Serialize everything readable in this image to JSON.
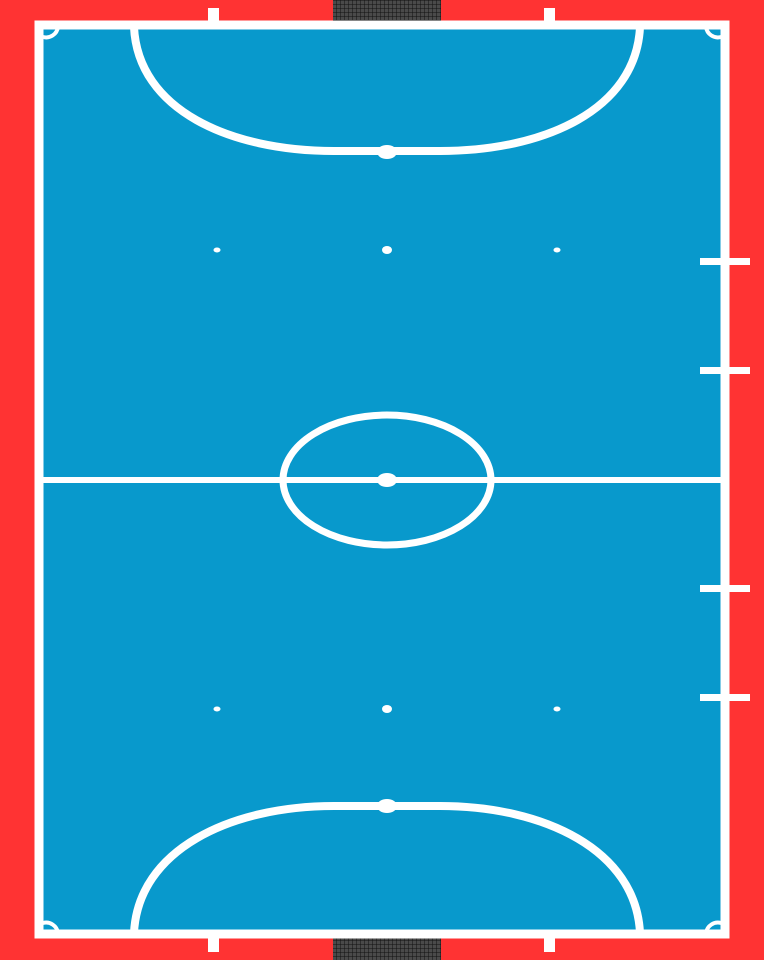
{
  "colors": {
    "surround": "#ff3333",
    "court": "#0899cc",
    "lines": "#ffffff",
    "net": "#1a1a1a",
    "goal_frame": "#9a9a9a"
  },
  "court": {
    "orientation": "vertical",
    "goals": [
      "top",
      "bottom"
    ],
    "substitution_zone_side": "right"
  }
}
